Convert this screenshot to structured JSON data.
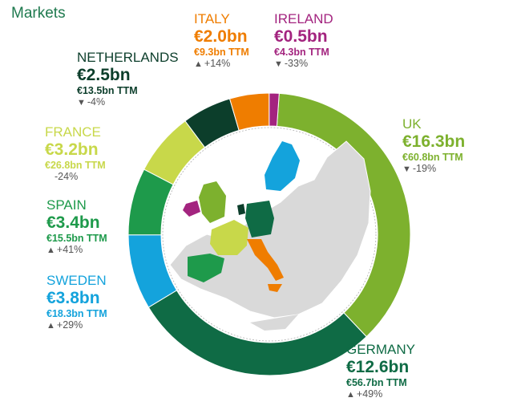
{
  "title": "Markets",
  "chart_data": {
    "type": "donut",
    "series": [
      {
        "name": "UK",
        "value": 16.3,
        "ttm": "€60.8bn TTM",
        "value_label": "€16.3bn",
        "change": "-19%",
        "direction": "down",
        "color": "#7db12e"
      },
      {
        "name": "GERMANY",
        "value": 12.6,
        "ttm": "€56.7bn TTM",
        "value_label": "€12.6bn",
        "change": "+49%",
        "direction": "up",
        "color": "#0f6b45"
      },
      {
        "name": "SWEDEN",
        "value": 3.8,
        "ttm": "€18.3bn TTM",
        "value_label": "€3.8bn",
        "change": "+29%",
        "direction": "up",
        "color": "#14a3dc"
      },
      {
        "name": "SPAIN",
        "value": 3.4,
        "ttm": "€15.5bn TTM",
        "value_label": "€3.4bn",
        "change": "+41%",
        "direction": "up",
        "color": "#1e9a4b"
      },
      {
        "name": "FRANCE",
        "value": 3.2,
        "ttm": "€26.8bn TTM",
        "value_label": "€3.2bn",
        "change": "-24%",
        "direction": "none",
        "color": "#c8d84a"
      },
      {
        "name": "NETHERLANDS",
        "value": 2.5,
        "ttm": "€13.5bn TTM",
        "value_label": "€2.5bn",
        "change": "-4%",
        "direction": "down",
        "color": "#0c3e2b"
      },
      {
        "name": "ITALY",
        "value": 2.0,
        "ttm": "€9.3bn TTM",
        "value_label": "€2.0bn",
        "change": "+14%",
        "direction": "up",
        "color": "#ef7d00"
      },
      {
        "name": "IRELAND",
        "value": 0.5,
        "ttm": "€4.3bn TTM",
        "value_label": "€0.5bn",
        "change": "-33%",
        "direction": "down",
        "color": "#a3247f"
      }
    ],
    "map": {
      "highlighted": [
        "UK",
        "IRELAND",
        "FRANCE",
        "SPAIN",
        "GERMANY",
        "NETHERLANDS",
        "ITALY",
        "SWEDEN"
      ],
      "base_color": "#d9d9d9"
    }
  }
}
